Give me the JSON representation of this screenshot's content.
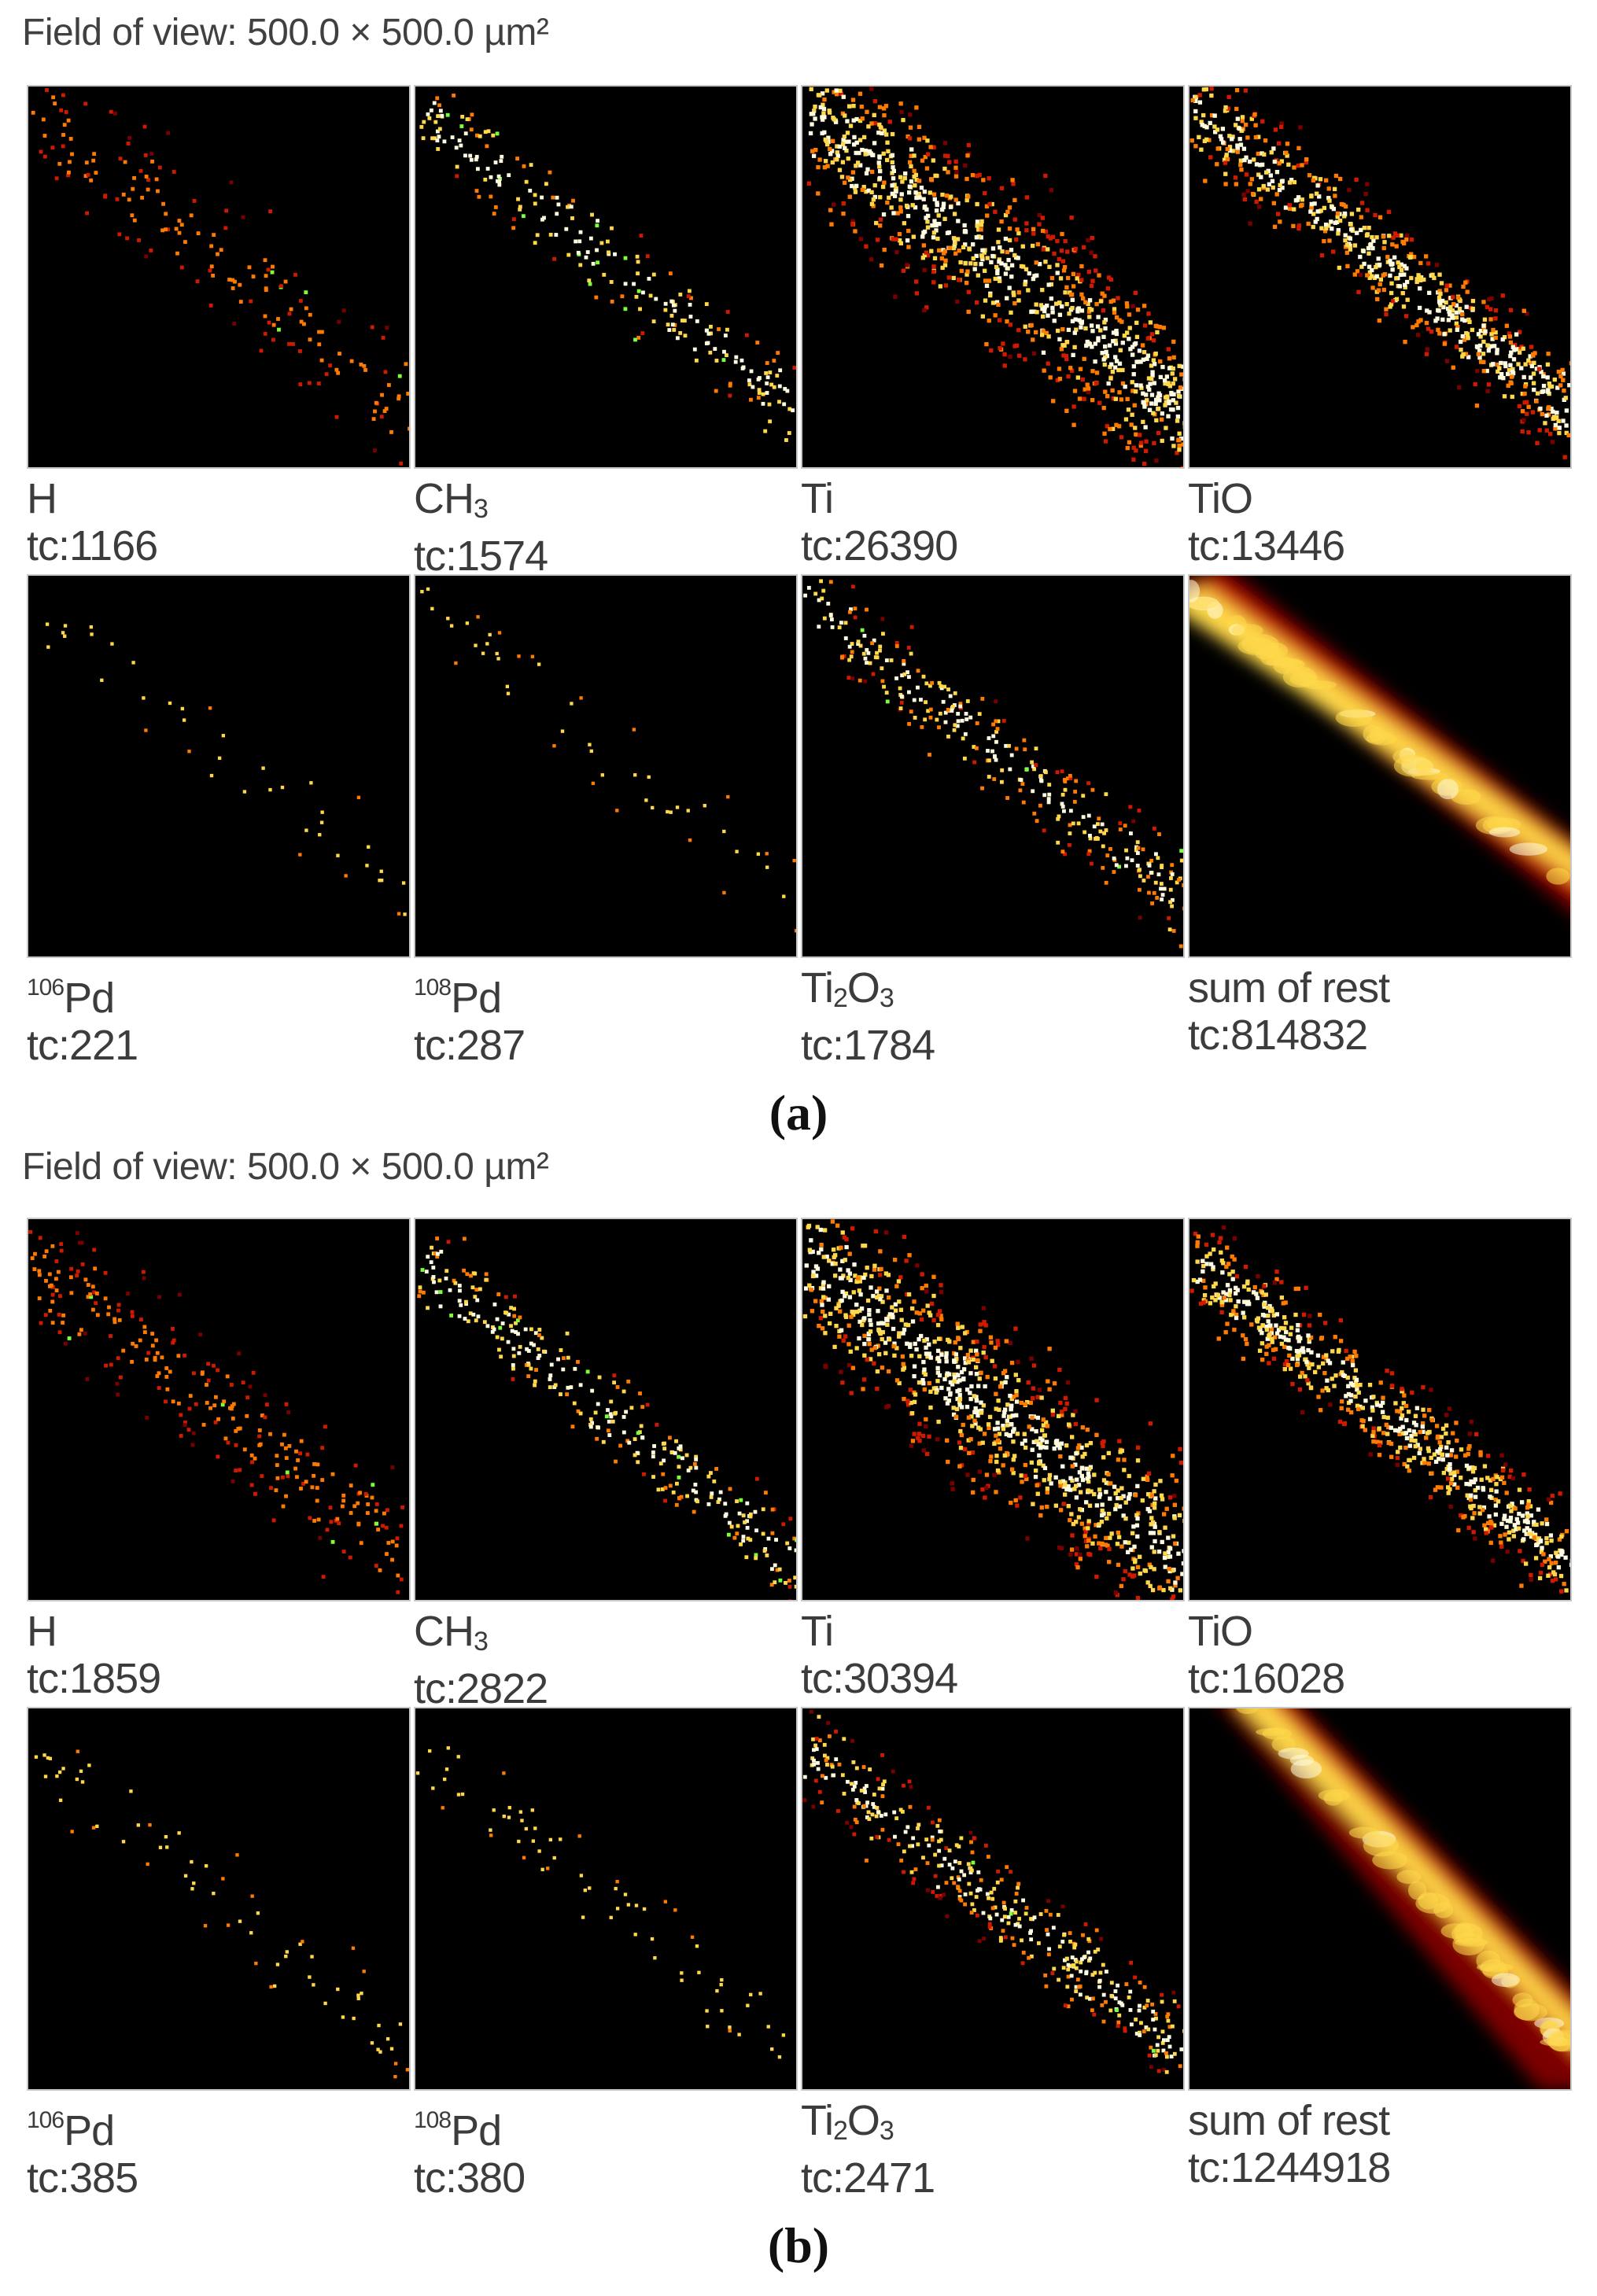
{
  "figure": {
    "parts": [
      {
        "caption": "(a)",
        "caption_letter": "a",
        "field_of_view": "Field of view: 500.0 × 500.0 µm²",
        "panels": [
          {
            "label": "H",
            "tc": "tc:1166"
          },
          {
            "label": "CH3",
            "tc": "tc:1574"
          },
          {
            "label": "Ti",
            "tc": "tc:26390"
          },
          {
            "label": "TiO",
            "tc": "tc:13446"
          },
          {
            "label": "106Pd",
            "tc": "tc:221"
          },
          {
            "label": "108Pd",
            "tc": "tc:287"
          },
          {
            "label": "Ti2O3",
            "tc": "tc:1784"
          },
          {
            "label": "sum of rest",
            "tc": "tc:814832"
          }
        ]
      },
      {
        "caption": "(b)",
        "caption_letter": "b",
        "field_of_view": "Field of view: 500.0 × 500.0 µm²",
        "panels": [
          {
            "label": "H",
            "tc": "tc:1859"
          },
          {
            "label": "CH3",
            "tc": "tc:2822"
          },
          {
            "label": "Ti",
            "tc": "tc:30394"
          },
          {
            "label": "TiO",
            "tc": "tc:16028"
          },
          {
            "label": "106Pd",
            "tc": "tc:385"
          },
          {
            "label": "108Pd",
            "tc": "tc:380"
          },
          {
            "label": "Ti2O3",
            "tc": "tc:2471"
          },
          {
            "label": "sum of rest",
            "tc": "tc:1244918"
          }
        ]
      }
    ],
    "colors": {
      "background": "#000000",
      "hot_dark": "#7a0000",
      "hot_red": "#d01a00",
      "hot_orange": "#ff7a00",
      "hot_yellow": "#ffd84a",
      "hot_white": "#fffbe0",
      "green_speck": "#7cff3a"
    },
    "colormap": "hot"
  }
}
